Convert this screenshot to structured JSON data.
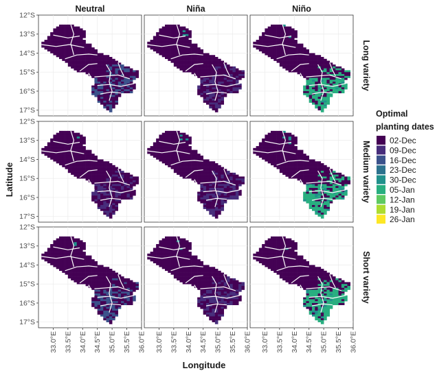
{
  "chart_data": {
    "type": "heatmap",
    "xlabel": "Longitude",
    "ylabel": "Latitude",
    "xlim": [
      32.5,
      36.0
    ],
    "ylim": [
      -17.3,
      -12.0
    ],
    "x_ticks": [
      33.0,
      33.5,
      34.0,
      34.5,
      35.0,
      35.5,
      36.0
    ],
    "x_tick_labels": [
      "33.0°E",
      "33.5°E",
      "34.0°E",
      "34.5°E",
      "35.0°E",
      "35.5°E",
      "36.0°E"
    ],
    "y_ticks": [
      -12,
      -13,
      -14,
      -15,
      -16,
      -17
    ],
    "y_tick_labels": [
      "12°S",
      "13°S",
      "14°S",
      "15°S",
      "16°S",
      "17°S"
    ],
    "columns": [
      "Neutral",
      "Niña",
      "Niño"
    ],
    "rows": [
      "Long variety",
      "Medium variety",
      "Short variety"
    ],
    "legend": {
      "title": [
        "Optimal",
        "planting dates"
      ],
      "placement": "right",
      "categories": [
        "02-Dec",
        "09-Dec",
        "16-Dec",
        "23-Dec",
        "30-Dec",
        "05-Jan",
        "12-Jan",
        "19-Jan",
        "26-Jan"
      ],
      "colors": [
        "#440154",
        "#472d7b",
        "#3b528b",
        "#2c728e",
        "#21918c",
        "#28ae80",
        "#5ec962",
        "#addc30",
        "#fde725"
      ]
    },
    "panel_summary": [
      {
        "scenario": "Neutral",
        "variety": "Long variety",
        "dominant": "02-Dec",
        "south": "16-Dec"
      },
      {
        "scenario": "Niña",
        "variety": "Long variety",
        "dominant": "02-Dec",
        "south": "09-Dec"
      },
      {
        "scenario": "Niño",
        "variety": "Long variety",
        "dominant": "02-Dec",
        "south": "05-Jan"
      },
      {
        "scenario": "Neutral",
        "variety": "Medium variety",
        "dominant": "02-Dec",
        "south": "09-Dec"
      },
      {
        "scenario": "Niña",
        "variety": "Medium variety",
        "dominant": "02-Dec",
        "south": "09-Dec"
      },
      {
        "scenario": "Niño",
        "variety": "Medium variety",
        "dominant": "02-Dec",
        "south": "05-Jan"
      },
      {
        "scenario": "Neutral",
        "variety": "Short variety",
        "dominant": "02-Dec",
        "south": "16-Dec"
      },
      {
        "scenario": "Niña",
        "variety": "Short variety",
        "dominant": "02-Dec",
        "south": "09-Dec"
      },
      {
        "scenario": "Niño",
        "variety": "Short variety",
        "dominant": "02-Dec",
        "south": "05-Jan"
      }
    ]
  }
}
